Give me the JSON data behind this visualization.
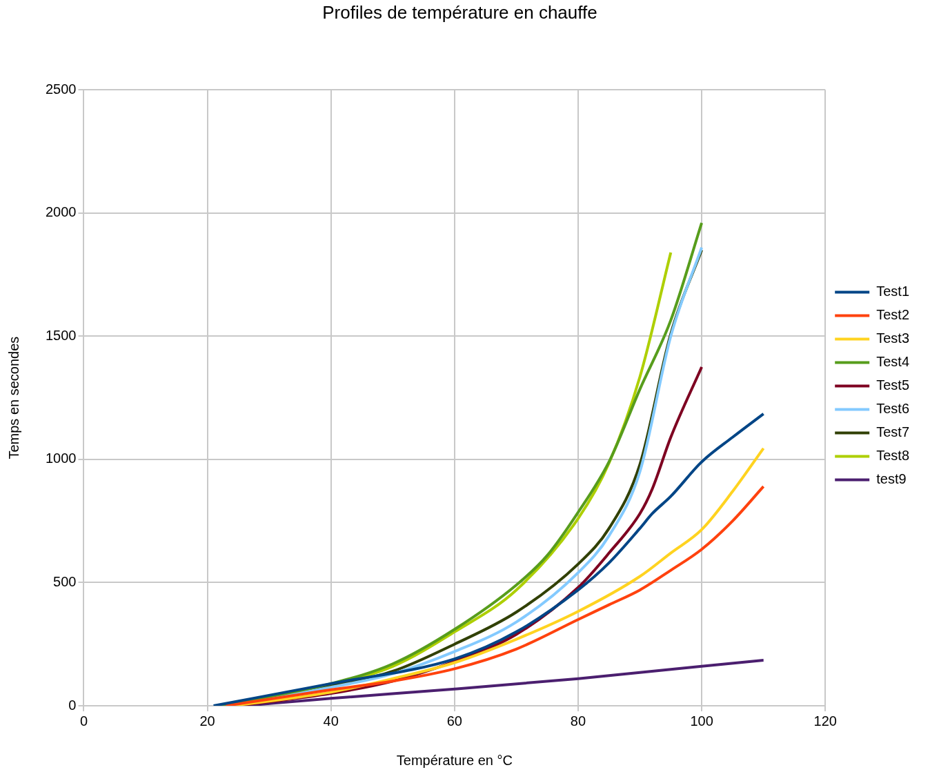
{
  "chart_data": {
    "type": "line",
    "title": "Profiles de température en chauffe",
    "xlabel": "Température en °C",
    "ylabel": "Temps en secondes",
    "xlim": [
      0,
      120
    ],
    "xticks": [
      0,
      20,
      40,
      60,
      80,
      100,
      120
    ],
    "ylim": [
      0,
      2500
    ],
    "yticks": [
      0,
      500,
      1000,
      1500,
      2000,
      2500
    ],
    "grid": true,
    "legend": "right",
    "marker": "none",
    "line_style": "solid",
    "series": [
      {
        "name": "Test1",
        "color": "#004586",
        "x": [
          21,
          40,
          60,
          70,
          80,
          85,
          90,
          92,
          95,
          100,
          105,
          110
        ],
        "values": [
          0,
          90,
          190,
          300,
          470,
          580,
          720,
          780,
          850,
          990,
          1090,
          1185
        ]
      },
      {
        "name": "Test2",
        "color": "#ff420e",
        "x": [
          23,
          40,
          50,
          60,
          70,
          80,
          85,
          90,
          95,
          100,
          105,
          110
        ],
        "values": [
          0,
          65,
          100,
          150,
          230,
          350,
          410,
          470,
          550,
          635,
          750,
          890
        ]
      },
      {
        "name": "Test3",
        "color": "#ffd320",
        "x": [
          24,
          40,
          50,
          60,
          70,
          80,
          90,
          95,
          100,
          105,
          110
        ],
        "values": [
          0,
          55,
          110,
          175,
          270,
          383,
          525,
          620,
          715,
          870,
          1045
        ]
      },
      {
        "name": "Test4",
        "color": "#579d1c",
        "x": [
          22,
          40,
          50,
          60,
          70,
          75,
          80,
          85,
          90,
          95,
          100
        ],
        "values": [
          0,
          90,
          170,
          310,
          490,
          610,
          785,
          990,
          1285,
          1565,
          1960
        ]
      },
      {
        "name": "Test5",
        "color": "#7e0021",
        "x": [
          25,
          40,
          50,
          60,
          70,
          80,
          85,
          90,
          92,
          95,
          100
        ],
        "values": [
          0,
          50,
          100,
          180,
          290,
          480,
          620,
          780,
          880,
          1090,
          1375
        ]
      },
      {
        "name": "Test6",
        "color": "#83caff",
        "x": [
          22,
          40,
          50,
          60,
          70,
          80,
          85,
          90,
          95,
          100
        ],
        "values": [
          0,
          75,
          130,
          220,
          340,
          540,
          690,
          950,
          1500,
          1860
        ]
      },
      {
        "name": "Test7",
        "color": "#314004",
        "x": [
          22,
          40,
          50,
          60,
          70,
          80,
          85,
          90,
          95,
          100
        ],
        "values": [
          0,
          80,
          140,
          250,
          380,
          575,
          720,
          980,
          1510,
          1850
        ]
      },
      {
        "name": "Test8",
        "color": "#aecf00",
        "x": [
          22,
          40,
          50,
          60,
          70,
          80,
          85,
          90,
          95
        ],
        "values": [
          0,
          85,
          160,
          300,
          470,
          760,
          985,
          1335,
          1840
        ]
      },
      {
        "name": "test9",
        "color": "#4b1f6f",
        "x": [
          26,
          40,
          60,
          80,
          90,
          100,
          110
        ],
        "values": [
          0,
          30,
          68,
          110,
          135,
          160,
          185
        ]
      }
    ]
  }
}
